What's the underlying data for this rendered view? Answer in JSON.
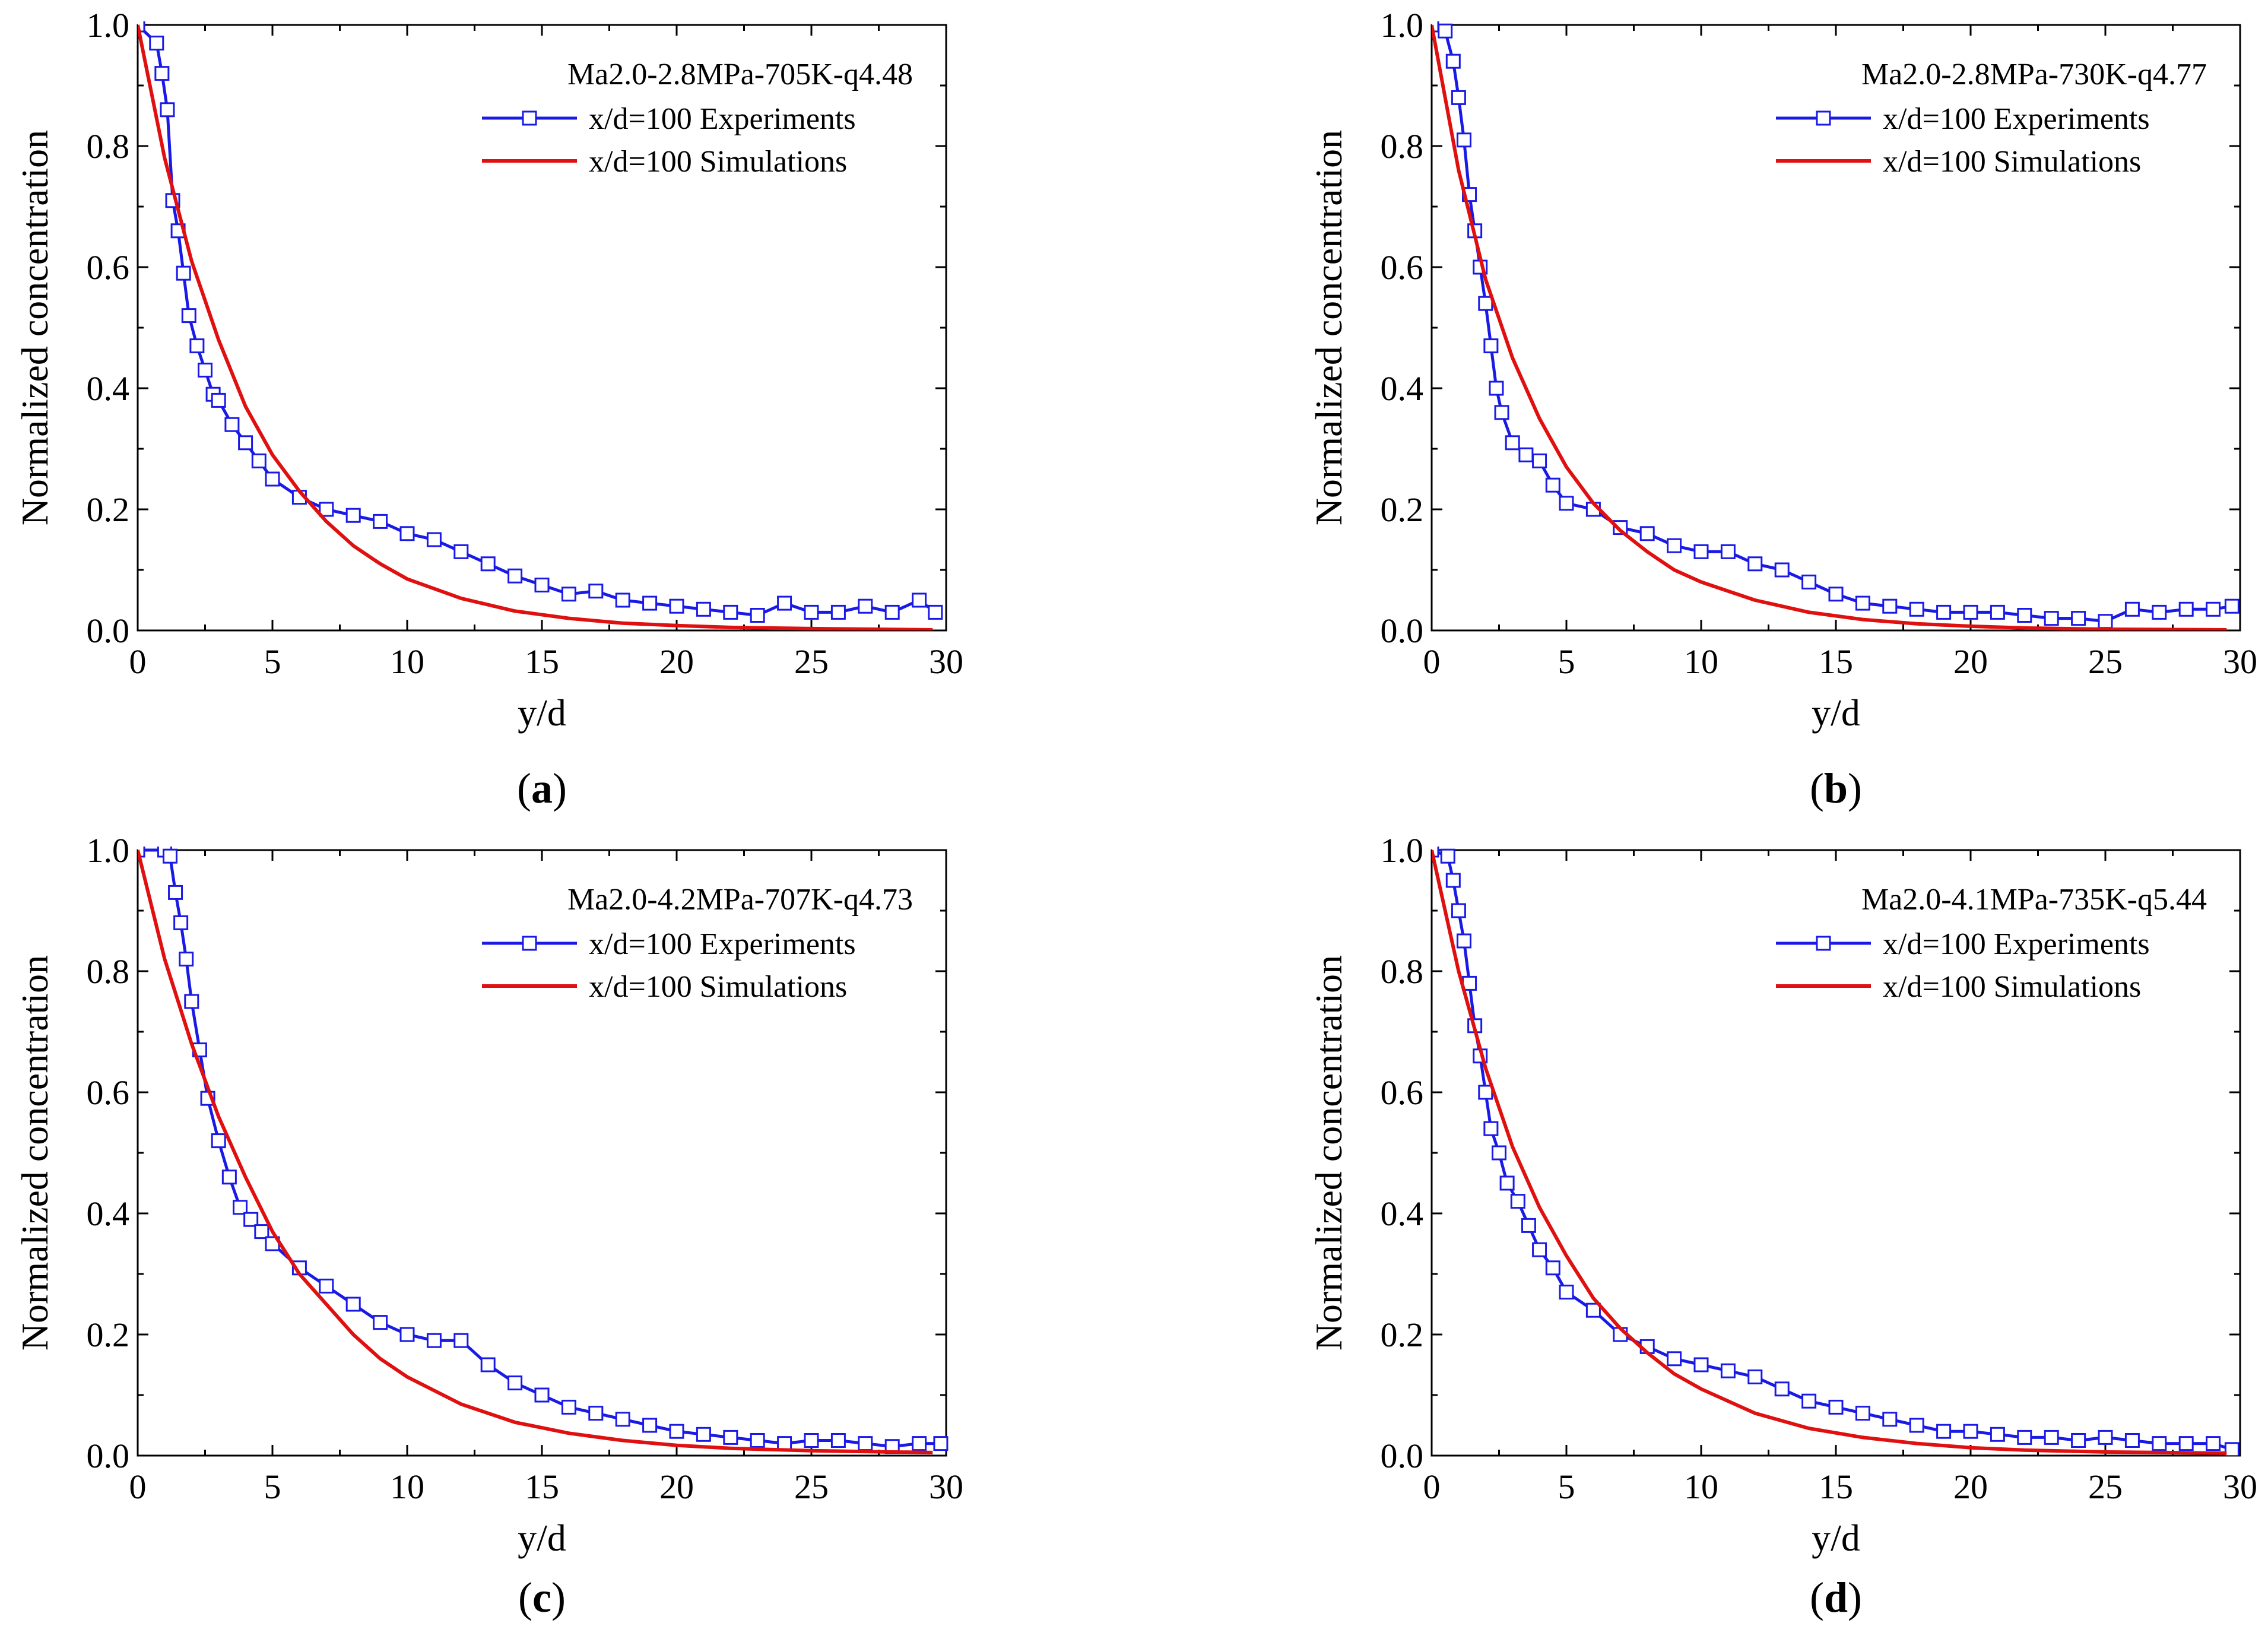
{
  "figure": {
    "colors": {
      "experiments": "#1a1ae6",
      "simulations": "#e01010",
      "axis": "#000000"
    },
    "marker": "open-square"
  },
  "chart_data": [
    {
      "type": "line",
      "panel": "a",
      "caption": {
        "open": "(",
        "letter": "a",
        "close": ")"
      },
      "annotation": "Ma2.0-2.8MPa-705K-q4.48",
      "xlabel": "y/d",
      "ylabel": "Normalized concentration",
      "xlim": [
        0,
        30
      ],
      "ylim": [
        0,
        1
      ],
      "xticks": [
        "0",
        "5",
        "10",
        "15",
        "20",
        "25",
        "30"
      ],
      "yticks": [
        "0.0",
        "0.2",
        "0.4",
        "0.6",
        "0.8",
        "1.0"
      ],
      "legend_position": "top-right",
      "series": [
        {
          "name": "x/d=100 Experiments",
          "style": "line-with-open-square-markers",
          "x": [
            0,
            0.7,
            0.9,
            1.1,
            1.3,
            1.5,
            1.7,
            1.9,
            2.2,
            2.5,
            2.8,
            3,
            3.5,
            4,
            4.5,
            5,
            6,
            7,
            8,
            9,
            10,
            11,
            12,
            13,
            14,
            15,
            16,
            17,
            18,
            19,
            20,
            21,
            22,
            23,
            24,
            25,
            26,
            27,
            28,
            29,
            29.6
          ],
          "y": [
            1.0,
            0.97,
            0.92,
            0.86,
            0.71,
            0.66,
            0.59,
            0.52,
            0.47,
            0.43,
            0.39,
            0.38,
            0.34,
            0.31,
            0.28,
            0.25,
            0.22,
            0.2,
            0.19,
            0.18,
            0.16,
            0.15,
            0.13,
            0.11,
            0.09,
            0.075,
            0.06,
            0.065,
            0.05,
            0.045,
            0.04,
            0.035,
            0.03,
            0.025,
            0.045,
            0.03,
            0.03,
            0.04,
            0.03,
            0.05,
            0.03
          ]
        },
        {
          "name": "x/d=100 Simulations",
          "style": "line",
          "x": [
            0,
            1,
            2,
            3,
            4,
            5,
            6,
            7,
            8,
            9,
            10,
            12,
            14,
            16,
            18,
            20,
            22,
            25,
            29.5
          ],
          "y": [
            1.0,
            0.78,
            0.61,
            0.48,
            0.37,
            0.29,
            0.23,
            0.18,
            0.14,
            0.11,
            0.085,
            0.053,
            0.032,
            0.02,
            0.012,
            0.008,
            0.005,
            0.003,
            0.001
          ]
        }
      ]
    },
    {
      "type": "line",
      "panel": "b",
      "caption": {
        "open": "(",
        "letter": "b",
        "close": ")"
      },
      "annotation": "Ma2.0-2.8MPa-730K-q4.77",
      "xlabel": "y/d",
      "ylabel": "Normalized concentration",
      "xlim": [
        0,
        30
      ],
      "ylim": [
        0,
        1
      ],
      "xticks": [
        "0",
        "5",
        "10",
        "15",
        "20",
        "25",
        "30"
      ],
      "yticks": [
        "0.0",
        "0.2",
        "0.4",
        "0.6",
        "0.8",
        "1.0"
      ],
      "legend_position": "top-right",
      "series": [
        {
          "name": "x/d=100 Experiments",
          "style": "line-with-open-square-markers",
          "x": [
            0,
            0.5,
            0.8,
            1.0,
            1.2,
            1.4,
            1.6,
            1.8,
            2.0,
            2.2,
            2.4,
            2.6,
            3,
            3.5,
            4,
            4.5,
            5,
            6,
            7,
            8,
            9,
            10,
            11,
            12,
            13,
            14,
            15,
            16,
            17,
            18,
            19,
            20,
            21,
            22,
            23,
            24,
            25,
            26,
            27,
            28,
            29,
            29.7
          ],
          "y": [
            1.0,
            0.99,
            0.94,
            0.88,
            0.81,
            0.72,
            0.66,
            0.6,
            0.54,
            0.47,
            0.4,
            0.36,
            0.31,
            0.29,
            0.28,
            0.24,
            0.21,
            0.2,
            0.17,
            0.16,
            0.14,
            0.13,
            0.13,
            0.11,
            0.1,
            0.08,
            0.06,
            0.045,
            0.04,
            0.035,
            0.03,
            0.03,
            0.03,
            0.025,
            0.02,
            0.02,
            0.015,
            0.035,
            0.03,
            0.035,
            0.035,
            0.04
          ]
        },
        {
          "name": "x/d=100 Simulations",
          "style": "line",
          "x": [
            0,
            1,
            2,
            3,
            4,
            5,
            6,
            7,
            8,
            9,
            10,
            12,
            14,
            16,
            18,
            20,
            22,
            25,
            29.5
          ],
          "y": [
            1.0,
            0.76,
            0.58,
            0.45,
            0.35,
            0.27,
            0.21,
            0.165,
            0.13,
            0.1,
            0.08,
            0.05,
            0.03,
            0.018,
            0.011,
            0.007,
            0.004,
            0.002,
            0.001
          ]
        }
      ]
    },
    {
      "type": "line",
      "panel": "c",
      "caption": {
        "open": "(",
        "letter": "c",
        "close": ")"
      },
      "annotation": "Ma2.0-4.2MPa-707K-q4.73",
      "xlabel": "y/d",
      "ylabel": "Normalized concentration",
      "xlim": [
        0,
        30
      ],
      "ylim": [
        0,
        1
      ],
      "xticks": [
        "0",
        "5",
        "10",
        "15",
        "20",
        "25",
        "30"
      ],
      "yticks": [
        "0.0",
        "0.2",
        "0.4",
        "0.6",
        "0.8",
        "1.0"
      ],
      "legend_position": "top-right",
      "series": [
        {
          "name": "x/d=100 Experiments",
          "style": "line-with-open-square-markers",
          "x": [
            0,
            1.0,
            1.2,
            1.4,
            1.6,
            1.8,
            2.0,
            2.3,
            2.6,
            3.0,
            3.4,
            3.8,
            4.2,
            4.6,
            5,
            6,
            7,
            8,
            9,
            10,
            11,
            12,
            13,
            14,
            15,
            16,
            17,
            18,
            19,
            20,
            21,
            22,
            23,
            24,
            25,
            26,
            27,
            28,
            29,
            29.8
          ],
          "y": [
            1.0,
            1.0,
            0.99,
            0.93,
            0.88,
            0.82,
            0.75,
            0.67,
            0.59,
            0.52,
            0.46,
            0.41,
            0.39,
            0.37,
            0.35,
            0.31,
            0.28,
            0.25,
            0.22,
            0.2,
            0.19,
            0.19,
            0.15,
            0.12,
            0.1,
            0.08,
            0.07,
            0.06,
            0.05,
            0.04,
            0.035,
            0.03,
            0.025,
            0.02,
            0.025,
            0.025,
            0.02,
            0.015,
            0.02,
            0.02
          ]
        },
        {
          "name": "x/d=100 Simulations",
          "style": "line",
          "x": [
            0,
            1,
            2,
            3,
            4,
            5,
            6,
            7,
            8,
            9,
            10,
            12,
            14,
            16,
            18,
            20,
            22,
            25,
            29.5
          ],
          "y": [
            1.0,
            0.82,
            0.68,
            0.56,
            0.46,
            0.37,
            0.3,
            0.25,
            0.2,
            0.16,
            0.13,
            0.085,
            0.055,
            0.037,
            0.025,
            0.017,
            0.012,
            0.008,
            0.005
          ]
        }
      ]
    },
    {
      "type": "line",
      "panel": "d",
      "caption": {
        "open": "(",
        "letter": "d",
        "close": ")"
      },
      "annotation": "Ma2.0-4.1MPa-735K-q5.44",
      "xlabel": "y/d",
      "ylabel": "Normalized concentration",
      "xlim": [
        0,
        30
      ],
      "ylim": [
        0,
        1
      ],
      "xticks": [
        "0",
        "5",
        "10",
        "15",
        "20",
        "25",
        "30"
      ],
      "yticks": [
        "0.0",
        "0.2",
        "0.4",
        "0.6",
        "0.8",
        "1.0"
      ],
      "legend_position": "top-right",
      "series": [
        {
          "name": "x/d=100 Experiments",
          "style": "line-with-open-square-markers",
          "x": [
            0,
            0.6,
            0.8,
            1.0,
            1.2,
            1.4,
            1.6,
            1.8,
            2.0,
            2.2,
            2.5,
            2.8,
            3.2,
            3.6,
            4,
            4.5,
            5,
            6,
            7,
            8,
            9,
            10,
            11,
            12,
            13,
            14,
            15,
            16,
            17,
            18,
            19,
            20,
            21,
            22,
            23,
            24,
            25,
            26,
            27,
            28,
            29,
            29.7
          ],
          "y": [
            1.0,
            0.99,
            0.95,
            0.9,
            0.85,
            0.78,
            0.71,
            0.66,
            0.6,
            0.54,
            0.5,
            0.45,
            0.42,
            0.38,
            0.34,
            0.31,
            0.27,
            0.24,
            0.2,
            0.18,
            0.16,
            0.15,
            0.14,
            0.13,
            0.11,
            0.09,
            0.08,
            0.07,
            0.06,
            0.05,
            0.04,
            0.04,
            0.035,
            0.03,
            0.03,
            0.025,
            0.03,
            0.025,
            0.02,
            0.02,
            0.02,
            0.01
          ]
        },
        {
          "name": "x/d=100 Simulations",
          "style": "line",
          "x": [
            0,
            1,
            2,
            3,
            4,
            5,
            6,
            7,
            8,
            9,
            10,
            12,
            14,
            16,
            18,
            20,
            22,
            25,
            29.5
          ],
          "y": [
            1.0,
            0.8,
            0.64,
            0.51,
            0.41,
            0.33,
            0.26,
            0.21,
            0.17,
            0.135,
            0.11,
            0.07,
            0.045,
            0.03,
            0.02,
            0.013,
            0.009,
            0.006,
            0.004
          ]
        }
      ]
    }
  ]
}
